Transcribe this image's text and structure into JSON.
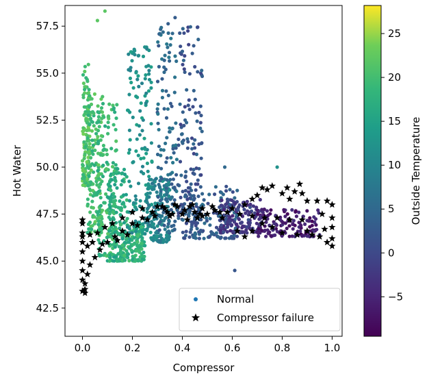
{
  "chart_data": {
    "type": "scatter",
    "xlabel": "Compressor",
    "ylabel": "Hot Water",
    "xlim": [
      -0.07,
      1.04
    ],
    "ylim": [
      41.0,
      58.6
    ],
    "xticks": [
      0.0,
      0.2,
      0.4,
      0.6,
      0.8,
      1.0
    ],
    "xtick_labels": [
      "0.0",
      "0.2",
      "0.4",
      "0.6",
      "0.8",
      "1.0"
    ],
    "yticks": [
      42.5,
      45.0,
      47.5,
      50.0,
      52.5,
      55.0,
      57.5
    ],
    "ytick_labels": [
      "42.5",
      "45.0",
      "47.5",
      "50.0",
      "52.5",
      "55.0",
      "57.5"
    ],
    "grid": false,
    "legend_position": "lower-right",
    "legend": [
      {
        "label": "Normal",
        "marker": "circle",
        "color": "#1f77b4"
      },
      {
        "label": "Compressor failure",
        "marker": "star",
        "color": "#000000"
      }
    ],
    "colorbar": {
      "label": "Outside Temperature",
      "colormap": "viridis",
      "range": [
        -9.5,
        28.2
      ],
      "ticks": [
        -5,
        0,
        5,
        10,
        15,
        20,
        25
      ],
      "tick_labels": [
        "−5",
        "0",
        "5",
        "10",
        "15",
        "20",
        "25"
      ]
    },
    "series": [
      {
        "name": "Normal",
        "marker": "circle",
        "color_by": "Outside Temperature",
        "clusters": [
          {
            "x": [
              0.0,
              0.03
            ],
            "y": [
              49.0,
              55.5
            ],
            "temp": 21
          },
          {
            "x": [
              0.02,
              0.08
            ],
            "y": [
              46.5,
              54.0
            ],
            "temp": 20
          },
          {
            "x": [
              0.06,
              0.14
            ],
            "y": [
              45.2,
              53.8
            ],
            "temp": 19
          },
          {
            "x": [
              0.1,
              0.18
            ],
            "y": [
              45.0,
              50.0
            ],
            "temp": 17
          },
          {
            "x": [
              0.15,
              0.25
            ],
            "y": [
              45.0,
              47.0
            ],
            "temp": 18
          },
          {
            "x": [
              0.18,
              0.28
            ],
            "y": [
              46.5,
              56.6
            ],
            "temp": 12
          },
          {
            "x": [
              0.25,
              0.35
            ],
            "y": [
              46.0,
              49.5
            ],
            "temp": 10
          },
          {
            "x": [
              0.3,
              0.38
            ],
            "y": [
              46.5,
              58.0
            ],
            "temp": 5
          },
          {
            "x": [
              0.38,
              0.48
            ],
            "y": [
              47.0,
              57.5
            ],
            "temp": 2
          },
          {
            "x": [
              0.4,
              0.62
            ],
            "y": [
              46.2,
              49.0
            ],
            "temp": 3
          },
          {
            "x": [
              0.55,
              0.72
            ],
            "y": [
              46.5,
              48.3
            ],
            "temp": -2
          },
          {
            "x": [
              0.7,
              0.95
            ],
            "y": [
              46.3,
              47.8
            ],
            "temp": -6
          }
        ],
        "outliers": [
          {
            "x": 0.61,
            "y": 44.5,
            "temp": 2
          },
          {
            "x": 0.78,
            "y": 50.0,
            "temp": 12
          },
          {
            "x": 0.57,
            "y": 50.0,
            "temp": 5
          },
          {
            "x": 0.09,
            "y": 58.3,
            "temp": 22
          },
          {
            "x": 0.06,
            "y": 57.8,
            "temp": 22
          }
        ]
      },
      {
        "name": "Compressor failure",
        "marker": "star",
        "color": "#000000",
        "points": [
          [
            0.0,
            43.4
          ],
          [
            0.01,
            43.8
          ],
          [
            0.02,
            44.3
          ],
          [
            0.03,
            44.8
          ],
          [
            0.05,
            45.2
          ],
          [
            0.07,
            45.6
          ],
          [
            0.1,
            46.0
          ],
          [
            0.13,
            46.3
          ],
          [
            0.16,
            46.6
          ],
          [
            0.2,
            47.0
          ],
          [
            0.24,
            47.3
          ],
          [
            0.28,
            47.6
          ],
          [
            0.33,
            47.8
          ],
          [
            0.38,
            47.9
          ],
          [
            0.43,
            47.9
          ],
          [
            0.48,
            47.8
          ],
          [
            0.53,
            47.7
          ],
          [
            0.58,
            47.6
          ],
          [
            0.63,
            47.5
          ],
          [
            0.68,
            47.4
          ],
          [
            0.73,
            47.3
          ],
          [
            0.78,
            47.3
          ],
          [
            0.83,
            47.2
          ],
          [
            0.88,
            47.2
          ],
          [
            0.0,
            46.3
          ],
          [
            0.03,
            46.4
          ],
          [
            0.06,
            46.5
          ],
          [
            0.09,
            46.8
          ],
          [
            0.12,
            47.0
          ],
          [
            0.16,
            47.3
          ],
          [
            0.2,
            47.6
          ],
          [
            0.24,
            47.8
          ],
          [
            0.3,
            47.9
          ],
          [
            0.36,
            47.5
          ],
          [
            0.42,
            47.2
          ],
          [
            0.48,
            47.4
          ],
          [
            0.55,
            47.6
          ],
          [
            0.6,
            47.8
          ],
          [
            0.65,
            48.0
          ],
          [
            0.68,
            48.3
          ],
          [
            0.7,
            48.5
          ],
          [
            0.72,
            48.9
          ],
          [
            0.74,
            48.8
          ],
          [
            0.76,
            49.0
          ],
          [
            0.8,
            48.6
          ],
          [
            0.83,
            48.3
          ],
          [
            0.85,
            48.7
          ],
          [
            0.87,
            49.1
          ],
          [
            0.9,
            48.2
          ],
          [
            0.94,
            48.2
          ],
          [
            0.98,
            48.2
          ],
          [
            1.0,
            48.0
          ],
          [
            1.0,
            47.3
          ],
          [
            1.0,
            46.8
          ],
          [
            1.0,
            46.2
          ],
          [
            1.0,
            45.8
          ],
          [
            0.98,
            46.0
          ],
          [
            0.95,
            46.3
          ],
          [
            0.92,
            46.4
          ],
          [
            0.86,
            46.4
          ],
          [
            0.8,
            46.5
          ],
          [
            0.76,
            46.8
          ],
          [
            0.72,
            47.0
          ],
          [
            0.68,
            46.6
          ],
          [
            0.65,
            46.3
          ],
          [
            0.62,
            46.6
          ],
          [
            0.0,
            47.2
          ],
          [
            0.0,
            47.0
          ],
          [
            0.0,
            46.5
          ],
          [
            0.0,
            46.0
          ],
          [
            0.0,
            45.5
          ],
          [
            0.0,
            45.0
          ],
          [
            0.0,
            44.5
          ],
          [
            0.0,
            44.0
          ],
          [
            0.01,
            43.5
          ],
          [
            0.01,
            43.3
          ],
          [
            0.02,
            45.8
          ],
          [
            0.04,
            46.0
          ],
          [
            0.08,
            45.9
          ],
          [
            0.14,
            46.1
          ],
          [
            0.18,
            46.4
          ],
          [
            0.22,
            46.9
          ],
          [
            0.26,
            47.2
          ],
          [
            0.34,
            47.6
          ],
          [
            0.4,
            47.5
          ],
          [
            0.45,
            47.6
          ],
          [
            0.5,
            47.5
          ],
          [
            0.56,
            47.3
          ],
          [
            0.35,
            47.4
          ],
          [
            0.37,
            48.0
          ],
          [
            0.44,
            48.0
          ],
          [
            0.47,
            47.5
          ],
          [
            0.52,
            47.9
          ],
          [
            0.46,
            47.3
          ],
          [
            0.41,
            47.7
          ],
          [
            0.32,
            47.9
          ],
          [
            0.29,
            47.4
          ],
          [
            0.9,
            46.6
          ],
          [
            0.97,
            46.7
          ],
          [
            0.96,
            47.5
          ],
          [
            0.88,
            48.6
          ],
          [
            0.82,
            48.9
          ]
        ]
      }
    ]
  }
}
